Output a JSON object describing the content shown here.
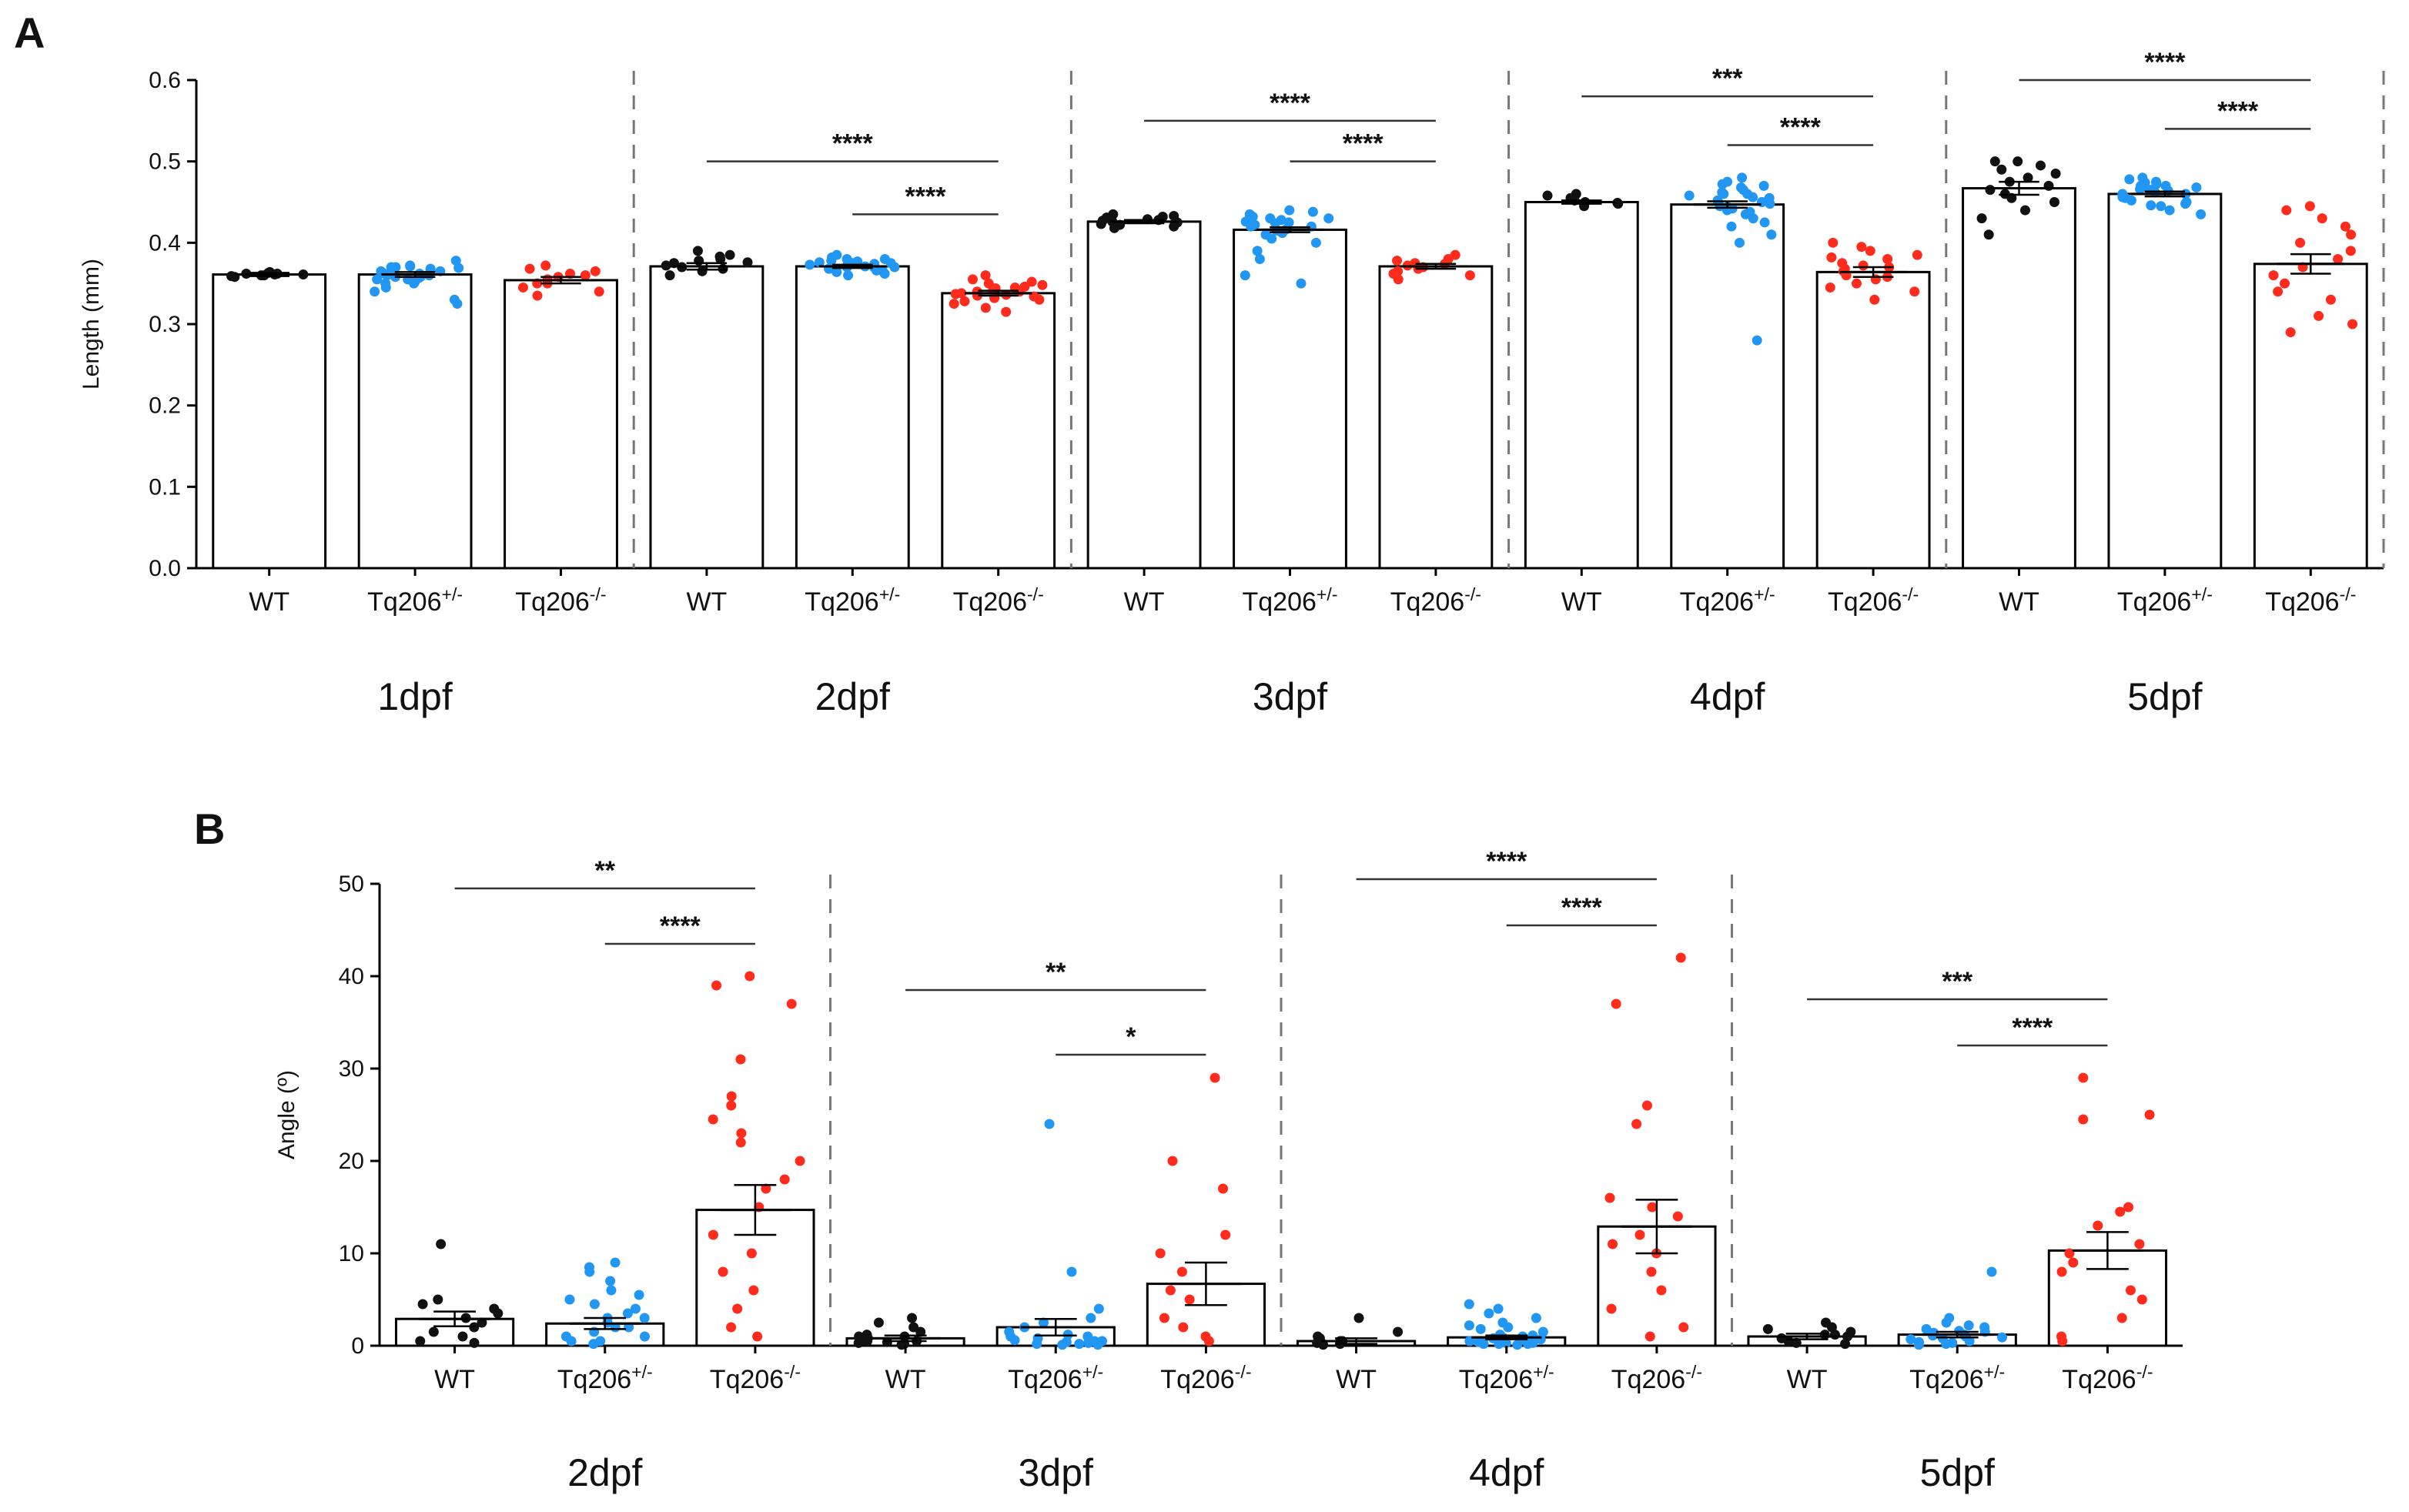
{
  "figure": {
    "colors": {
      "WT": "#111111",
      "het": "#2196f3",
      "hom": "#ff2b1c",
      "axis": "#000000",
      "divider": "#777777"
    }
  },
  "chart_data": [
    {
      "type": "bar",
      "panel_label": "A",
      "ylabel": "Length (mm)",
      "ylim": [
        0,
        0.6
      ],
      "yticks": [
        "0.0",
        "0.1",
        "0.2",
        "0.3",
        "0.4",
        "0.5",
        "0.6"
      ],
      "bar_labels": [
        "WT",
        "Tq206+/-",
        "Tq206-/-"
      ],
      "groups": [
        {
          "label": "1dpf",
          "bars": [
            {
              "name": "WT",
              "value": 0.361,
              "sem": 0.002,
              "points": [
                0.363,
                0.361,
                0.358,
                0.362,
                0.36,
                0.364,
                0.359,
                0.361,
                0.362,
                0.36
              ]
            },
            {
              "name": "Tq206+/-",
              "value": 0.361,
              "sem": 0.003,
              "points": [
                0.37,
                0.365,
                0.36,
                0.355,
                0.352,
                0.37,
                0.368,
                0.362,
                0.358,
                0.35,
                0.345,
                0.34,
                0.33,
                0.325,
                0.365,
                0.372,
                0.378,
                0.36,
                0.355,
                0.362,
                0.366,
                0.358,
                0.35,
                0.369,
                0.371,
                0.363,
                0.357
              ]
            },
            {
              "name": "Tq206-/-",
              "value": 0.354,
              "sem": 0.004,
              "points": [
                0.372,
                0.368,
                0.36,
                0.355,
                0.35,
                0.345,
                0.34,
                0.335,
                0.365,
                0.358,
                0.35,
                0.362
              ]
            }
          ],
          "comparisons": []
        },
        {
          "label": "2dpf",
          "bars": [
            {
              "name": "WT",
              "value": 0.371,
              "sem": 0.004,
              "points": [
                0.39,
                0.385,
                0.38,
                0.375,
                0.37,
                0.365,
                0.36,
                0.372,
                0.378,
                0.368,
                0.383,
                0.376
              ]
            },
            {
              "name": "Tq206+/-",
              "value": 0.371,
              "sem": 0.002,
              "points": [
                0.385,
                0.38,
                0.375,
                0.37,
                0.365,
                0.36,
                0.372,
                0.378,
                0.368,
                0.374,
                0.376,
                0.382,
                0.366,
                0.362,
                0.37,
                0.375,
                0.38,
                0.369,
                0.371,
                0.377,
                0.373,
                0.364
              ]
            },
            {
              "name": "Tq206-/-",
              "value": 0.338,
              "sem": 0.003,
              "points": [
                0.36,
                0.355,
                0.35,
                0.345,
                0.34,
                0.335,
                0.33,
                0.325,
                0.32,
                0.315,
                0.342,
                0.338,
                0.348,
                0.332,
                0.352,
                0.336,
                0.344,
                0.328,
                0.346,
                0.334,
                0.34,
                0.337
              ]
            }
          ],
          "comparisons": [
            {
              "from": "WT",
              "to": "Tq206-/-",
              "label": "****",
              "y": 0.5
            },
            {
              "from": "Tq206+/-",
              "to": "Tq206-/-",
              "label": "****",
              "y": 0.435
            }
          ]
        },
        {
          "label": "3dpf",
          "bars": [
            {
              "name": "WT",
              "value": 0.426,
              "sem": 0.002,
              "points": [
                0.435,
                0.432,
                0.43,
                0.428,
                0.425,
                0.422,
                0.42,
                0.418,
                0.427,
                0.431,
                0.423,
                0.429,
                0.433,
                0.424,
                0.426
              ]
            },
            {
              "name": "Tq206+/-",
              "value": 0.416,
              "sem": 0.003,
              "points": [
                0.44,
                0.435,
                0.43,
                0.425,
                0.42,
                0.415,
                0.41,
                0.405,
                0.4,
                0.39,
                0.38,
                0.36,
                0.35,
                0.432,
                0.428,
                0.422,
                0.418,
                0.412,
                0.426,
                0.438,
                0.416,
                0.42,
                0.424,
                0.43
              ]
            },
            {
              "name": "Tq206-/-",
              "value": 0.371,
              "sem": 0.003,
              "points": [
                0.385,
                0.38,
                0.375,
                0.37,
                0.365,
                0.36,
                0.355,
                0.378,
                0.372,
                0.368,
                0.362,
                0.374
              ]
            }
          ],
          "comparisons": [
            {
              "from": "WT",
              "to": "Tq206-/-",
              "label": "****",
              "y": 0.55
            },
            {
              "from": "Tq206+/-",
              "to": "Tq206-/-",
              "label": "****",
              "y": 0.5
            }
          ]
        },
        {
          "label": "4dpf",
          "bars": [
            {
              "name": "WT",
              "value": 0.45,
              "sem": 0.002,
              "points": [
                0.46,
                0.455,
                0.45,
                0.448,
                0.445,
                0.452,
                0.458,
                0.449
              ]
            },
            {
              "name": "Tq206+/-",
              "value": 0.447,
              "sem": 0.004,
              "points": [
                0.48,
                0.475,
                0.47,
                0.465,
                0.46,
                0.455,
                0.45,
                0.445,
                0.44,
                0.435,
                0.43,
                0.425,
                0.42,
                0.41,
                0.4,
                0.28,
                0.462,
                0.458,
                0.448,
                0.442,
                0.468,
                0.452,
                0.438,
                0.456,
                0.444,
                0.472,
                0.45,
                0.46
              ]
            },
            {
              "name": "Tq206-/-",
              "value": 0.364,
              "sem": 0.006,
              "points": [
                0.4,
                0.395,
                0.39,
                0.385,
                0.38,
                0.375,
                0.37,
                0.365,
                0.36,
                0.355,
                0.35,
                0.345,
                0.34,
                0.33,
                0.382,
                0.372,
                0.368,
                0.358
              ]
            }
          ],
          "comparisons": [
            {
              "from": "WT",
              "to": "Tq206-/-",
              "label": "***",
              "y": 0.58
            },
            {
              "from": "Tq206+/-",
              "to": "Tq206-/-",
              "label": "****",
              "y": 0.52
            }
          ]
        },
        {
          "label": "5dpf",
          "bars": [
            {
              "name": "WT",
              "value": 0.467,
              "sem": 0.008,
              "points": [
                0.5,
                0.495,
                0.49,
                0.485,
                0.48,
                0.475,
                0.47,
                0.465,
                0.46,
                0.455,
                0.45,
                0.44,
                0.43,
                0.41,
                0.5
              ]
            },
            {
              "name": "Tq206+/-",
              "value": 0.46,
              "sem": 0.003,
              "points": [
                0.48,
                0.475,
                0.47,
                0.465,
                0.46,
                0.455,
                0.45,
                0.445,
                0.44,
                0.435,
                0.478,
                0.472,
                0.466,
                0.462,
                0.458,
                0.452,
                0.448,
                0.468,
                0.456,
                0.464,
                0.474,
                0.446,
                0.47,
                0.46
              ]
            },
            {
              "name": "Tq206-/-",
              "value": 0.374,
              "sem": 0.012,
              "points": [
                0.445,
                0.44,
                0.43,
                0.42,
                0.41,
                0.4,
                0.39,
                0.38,
                0.37,
                0.36,
                0.35,
                0.34,
                0.33,
                0.31,
                0.3,
                0.29
              ]
            }
          ],
          "comparisons": [
            {
              "from": "WT",
              "to": "Tq206-/-",
              "label": "****",
              "y": 0.6
            },
            {
              "from": "Tq206+/-",
              "to": "Tq206-/-",
              "label": "****",
              "y": 0.54
            }
          ]
        }
      ]
    },
    {
      "type": "bar",
      "panel_label": "B",
      "ylabel": "Angle (º)",
      "ylim": [
        0,
        50
      ],
      "yticks": [
        "0",
        "10",
        "20",
        "30",
        "40",
        "50"
      ],
      "bar_labels": [
        "WT",
        "Tq206+/-",
        "Tq206-/-"
      ],
      "groups": [
        {
          "label": "2dpf",
          "bars": [
            {
              "name": "WT",
              "value": 2.9,
              "sem": 0.8,
              "points": [
                11,
                5,
                4.5,
                4,
                3,
                2.5,
                2,
                1.5,
                1,
                0.5,
                0.3,
                3.5
              ]
            },
            {
              "name": "Tq206+/-",
              "value": 2.4,
              "sem": 0.6,
              "points": [
                9,
                8.5,
                8,
                7,
                6,
                5,
                4.5,
                4,
                3.5,
                3,
                2.5,
                2,
                1.5,
                1,
                0.5,
                0.2,
                3,
                2,
                1,
                0.5,
                5.5
              ]
            },
            {
              "name": "Tq206-/-",
              "value": 14.7,
              "sem": 2.7,
              "points": [
                40,
                39,
                37,
                31,
                27,
                26,
                24.5,
                23,
                22,
                20,
                18,
                17,
                15,
                12,
                10,
                8,
                6,
                4,
                2,
                1
              ]
            }
          ],
          "comparisons": [
            {
              "from": "WT",
              "to": "Tq206-/-",
              "label": "**",
              "y": 49.5
            },
            {
              "from": "Tq206+/-",
              "to": "Tq206-/-",
              "label": "****",
              "y": 43.5
            }
          ]
        },
        {
          "label": "3dpf",
          "bars": [
            {
              "name": "WT",
              "value": 0.8,
              "sem": 0.3,
              "points": [
                3,
                2.5,
                2,
                1.5,
                1,
                0.5,
                0.3,
                0.2,
                0.1,
                1,
                0.5,
                0.8,
                1.2,
                0.4
              ]
            },
            {
              "name": "Tq206+/-",
              "value": 2.0,
              "sem": 0.9,
              "points": [
                24,
                8,
                4,
                3,
                2,
                1.5,
                1,
                0.5,
                0.3,
                0.2,
                0.1,
                0.5,
                1,
                0.8,
                0.4,
                0.6,
                1.2,
                2.5,
                0.2,
                0.1
              ]
            },
            {
              "name": "Tq206-/-",
              "value": 6.7,
              "sem": 2.3,
              "points": [
                29,
                20,
                17,
                12,
                10,
                8,
                6,
                5,
                3,
                2,
                1,
                0.5
              ]
            }
          ],
          "comparisons": [
            {
              "from": "WT",
              "to": "Tq206-/-",
              "label": "**",
              "y": 38.5
            },
            {
              "from": "Tq206+/-",
              "to": "Tq206-/-",
              "label": "*",
              "y": 31.5
            }
          ]
        },
        {
          "label": "4dpf",
          "bars": [
            {
              "name": "WT",
              "value": 0.5,
              "sem": 0.3,
              "points": [
                3,
                1.5,
                1,
                0.5,
                0.3,
                0.2,
                0.1,
                0.5,
                0.8,
                0.2
              ]
            },
            {
              "name": "Tq206+/-",
              "value": 0.9,
              "sem": 0.2,
              "points": [
                4.5,
                4,
                3.5,
                3,
                2.5,
                2,
                1.5,
                1,
                0.8,
                0.6,
                0.5,
                0.4,
                0.3,
                0.2,
                0.1,
                1.2,
                0.9,
                0.7,
                0.5,
                0.3,
                0.2,
                1.8,
                1.1,
                0.6,
                0.4,
                0.2,
                2.2,
                0.8
              ]
            },
            {
              "name": "Tq206-/-",
              "value": 12.9,
              "sem": 2.9,
              "points": [
                42,
                37,
                26,
                24,
                16,
                15,
                14,
                12,
                11,
                10,
                8,
                6,
                4,
                2,
                1
              ]
            }
          ],
          "comparisons": [
            {
              "from": "WT",
              "to": "Tq206-/-",
              "label": "****",
              "y": 50.5
            },
            {
              "from": "Tq206+/-",
              "to": "Tq206-/-",
              "label": "****",
              "y": 45.5
            }
          ]
        },
        {
          "label": "5dpf",
          "bars": [
            {
              "name": "WT",
              "value": 1.0,
              "sem": 0.3,
              "points": [
                2.5,
                2,
                1.8,
                1.5,
                1.2,
                1,
                0.8,
                0.5,
                0.3,
                0.2,
                1.2
              ]
            },
            {
              "name": "Tq206+/-",
              "value": 1.2,
              "sem": 0.3,
              "points": [
                8,
                3,
                2.5,
                2,
                1.8,
                1.5,
                1.2,
                1,
                0.8,
                0.5,
                0.4,
                0.3,
                0.2,
                0.1,
                1.6,
                1.1,
                0.7,
                0.9,
                2.2,
                1.4
              ]
            },
            {
              "name": "Tq206-/-",
              "value": 10.3,
              "sem": 2.0,
              "points": [
                29,
                25,
                24.5,
                15,
                14.5,
                13,
                11,
                10,
                9,
                8,
                6,
                5,
                3,
                1,
                0.5
              ]
            }
          ],
          "comparisons": [
            {
              "from": "WT",
              "to": "Tq206-/-",
              "label": "***",
              "y": 37.5
            },
            {
              "from": "Tq206+/-",
              "to": "Tq206-/-",
              "label": "****",
              "y": 32.5
            }
          ]
        }
      ]
    }
  ]
}
